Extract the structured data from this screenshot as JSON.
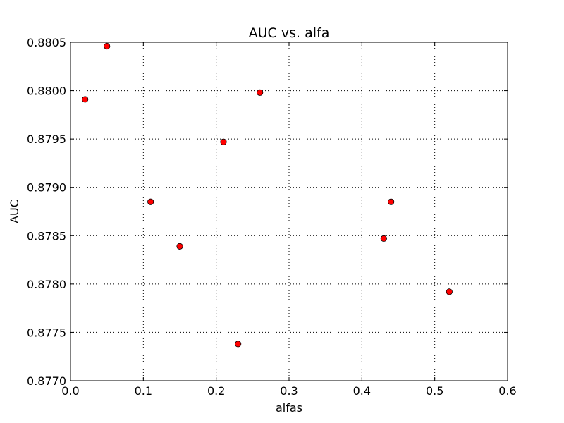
{
  "chart_data": {
    "type": "scatter",
    "title": "AUC vs. alfa",
    "xlabel": "alfas",
    "ylabel": "AUC",
    "xlim": [
      0.0,
      0.6
    ],
    "ylim": [
      0.877,
      0.8805
    ],
    "xticks": [
      0.0,
      0.1,
      0.2,
      0.3,
      0.4,
      0.5,
      0.6
    ],
    "xtick_labels": [
      "0.0",
      "0.1",
      "0.2",
      "0.3",
      "0.4",
      "0.5",
      "0.6"
    ],
    "yticks": [
      0.877,
      0.8775,
      0.878,
      0.8785,
      0.879,
      0.8795,
      0.88,
      0.8805
    ],
    "ytick_labels": [
      "0.8770",
      "0.8775",
      "0.8780",
      "0.8785",
      "0.8790",
      "0.8795",
      "0.8800",
      "0.8805"
    ],
    "grid": true,
    "marker_color": "#ff0000",
    "x": [
      0.02,
      0.05,
      0.11,
      0.15,
      0.21,
      0.23,
      0.26,
      0.43,
      0.44,
      0.52
    ],
    "y": [
      0.87991,
      0.88046,
      0.87885,
      0.87839,
      0.87947,
      0.87738,
      0.87998,
      0.87847,
      0.87885,
      0.87792
    ]
  }
}
